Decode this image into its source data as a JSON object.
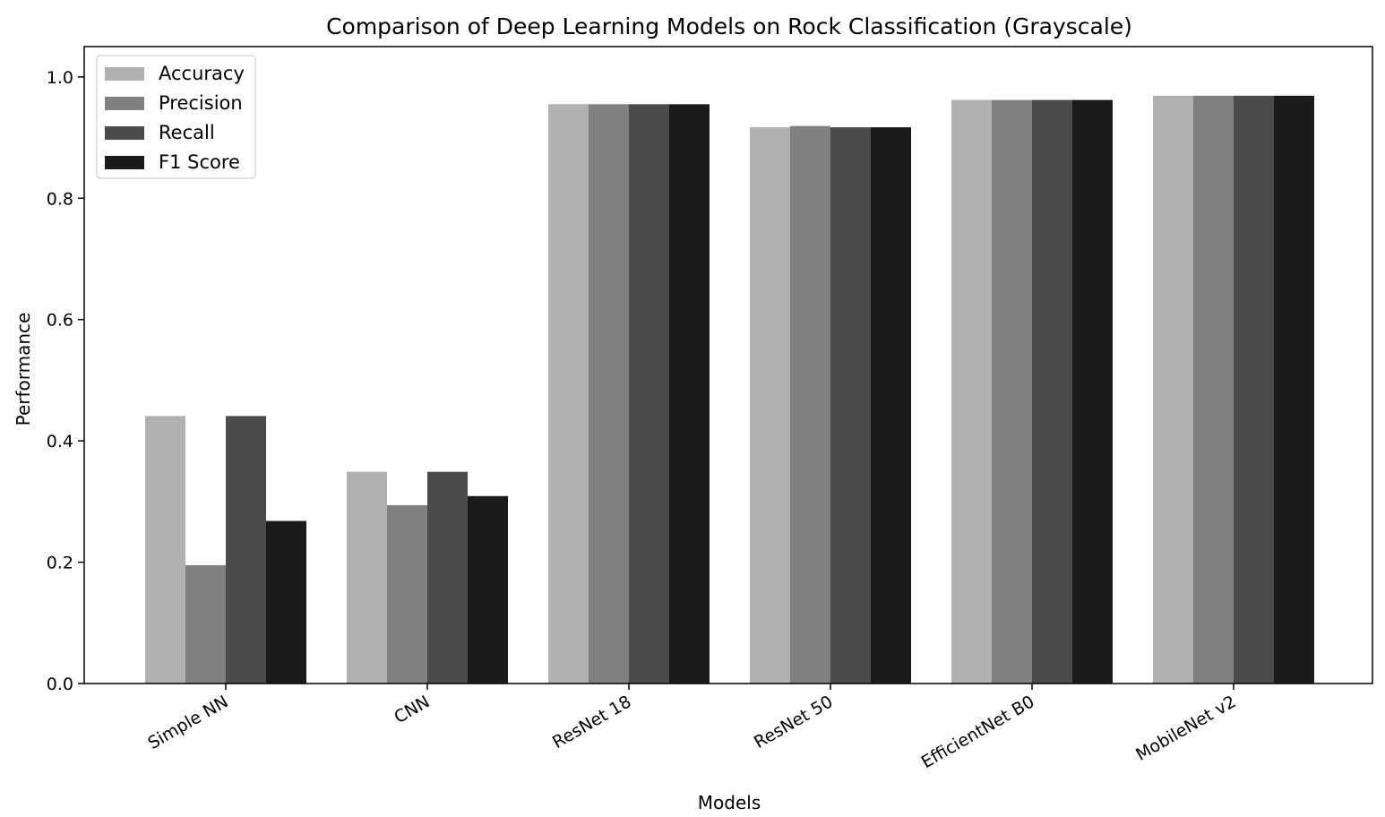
{
  "chart_data": {
    "type": "bar",
    "title": "Comparison of Deep Learning Models on Rock Classification (Grayscale)",
    "xlabel": "Models",
    "ylabel": "Performance",
    "categories": [
      "Simple NN",
      "CNN",
      "ResNet 18",
      "ResNet 50",
      "EfficientNet B0",
      "MobileNet v2"
    ],
    "series": [
      {
        "name": "Accuracy",
        "color": "#b0b0b0",
        "values": [
          0.441,
          0.349,
          0.955,
          0.917,
          0.962,
          0.969
        ]
      },
      {
        "name": "Precision",
        "color": "#808080",
        "values": [
          0.195,
          0.294,
          0.955,
          0.919,
          0.962,
          0.969
        ]
      },
      {
        "name": "Recall",
        "color": "#4b4b4b",
        "values": [
          0.441,
          0.349,
          0.955,
          0.917,
          0.962,
          0.969
        ]
      },
      {
        "name": "F1 Score",
        "color": "#1b1b1b",
        "values": [
          0.268,
          0.309,
          0.955,
          0.917,
          0.962,
          0.969
        ]
      }
    ],
    "ylim": [
      0.0,
      1.05
    ],
    "yticks": [
      "0.0",
      "0.2",
      "0.4",
      "0.6",
      "0.8",
      "1.0"
    ],
    "grid": false,
    "legend_position": "top-left"
  }
}
